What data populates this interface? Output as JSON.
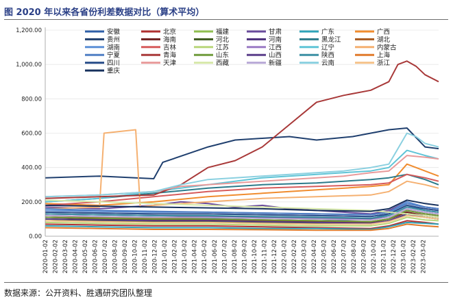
{
  "title": "图 2020 年以来各省份利差数据对比（算术平均）",
  "source": "数据来源：公开资料、胜遇研究团队整理",
  "chart_data": {
    "type": "line",
    "ylim": [
      0,
      1200
    ],
    "y_ticks": [
      "0.00",
      "200.00",
      "400.00",
      "600.00",
      "800.00",
      "1,000.00",
      "1,200.00"
    ],
    "x_ticks": [
      "2020-01-02",
      "2020-02-02",
      "2020-03-02",
      "2020-04-02",
      "2020-05-02",
      "2020-06-02",
      "2020-07-02",
      "2020-08-02",
      "2020-09-02",
      "2020-10-02",
      "2020-11-02",
      "2020-12-02",
      "2021-01-02",
      "2021-02-02",
      "2021-03-02",
      "2021-04-02",
      "2021-05-02",
      "2021-06-02",
      "2021-07-02",
      "2021-08-02",
      "2021-09-02",
      "2021-10-02",
      "2021-11-02",
      "2021-12-02",
      "2022-01-02",
      "2022-02-02",
      "2022-03-02",
      "2022-04-02",
      "2022-05-02",
      "2022-06-02",
      "2022-07-02",
      "2022-08-02",
      "2022-09-02",
      "2022-10-02",
      "2022-11-02",
      "2022-12-02",
      "2023-01-02",
      "2023-02-02",
      "2023-03-02"
    ],
    "x_range": [
      0,
      43.5
    ],
    "series": [
      {
        "name": "安徽",
        "color": "#2e5fa8",
        "x": [
          0,
          6,
          12,
          18,
          24,
          30,
          33,
          36,
          38,
          40,
          42,
          43.5
        ],
        "values": [
          120,
          115,
          110,
          108,
          105,
          100,
          95,
          100,
          130,
          180,
          150,
          140
        ]
      },
      {
        "name": "北京",
        "color": "#b03030",
        "x": [
          0,
          6,
          12,
          18,
          24,
          30,
          36,
          38,
          40,
          42,
          43.5
        ],
        "values": [
          70,
          65,
          60,
          60,
          55,
          50,
          45,
          60,
          90,
          80,
          70
        ]
      },
      {
        "name": "福建",
        "color": "#8fbf4f",
        "x": [
          0,
          6,
          12,
          18,
          24,
          30,
          36,
          38,
          40,
          42,
          43.5
        ],
        "values": [
          90,
          85,
          80,
          80,
          75,
          70,
          70,
          90,
          120,
          110,
          100
        ]
      },
      {
        "name": "甘肃",
        "color": "#6a4c9c",
        "x": [
          0,
          6,
          12,
          15,
          18,
          21,
          24,
          27,
          30,
          33,
          36,
          38,
          40,
          42,
          43.5
        ],
        "values": [
          170,
          160,
          180,
          200,
          190,
          170,
          180,
          160,
          150,
          140,
          130,
          150,
          200,
          170,
          160
        ]
      },
      {
        "name": "广东",
        "color": "#2ea3b8",
        "x": [
          0,
          6,
          12,
          18,
          24,
          30,
          36,
          38,
          40,
          42,
          43.5
        ],
        "values": [
          60,
          55,
          50,
          50,
          45,
          45,
          40,
          55,
          80,
          75,
          70
        ]
      },
      {
        "name": "广西",
        "color": "#f08c2e",
        "x": [
          0,
          6,
          12,
          18,
          24,
          30,
          36,
          38,
          40,
          42,
          43.5
        ],
        "values": [
          190,
          180,
          200,
          230,
          250,
          270,
          290,
          300,
          420,
          380,
          350
        ]
      },
      {
        "name": "贵州",
        "color": "#1f3f6e",
        "x": [
          0,
          6,
          12,
          13,
          18,
          21,
          24,
          27,
          30,
          32,
          34,
          36,
          38,
          40,
          42,
          43.5
        ],
        "values": [
          340,
          350,
          335,
          430,
          520,
          560,
          570,
          580,
          560,
          570,
          580,
          600,
          620,
          630,
          520,
          510
        ]
      },
      {
        "name": "海南",
        "color": "#6e1f1f",
        "x": [
          0,
          6,
          12,
          18,
          24,
          30,
          36,
          38,
          40,
          42,
          43.5
        ],
        "values": [
          110,
          100,
          95,
          95,
          90,
          85,
          80,
          100,
          140,
          120,
          110
        ]
      },
      {
        "name": "河北",
        "color": "#3d5a1e",
        "x": [
          0,
          6,
          12,
          18,
          24,
          30,
          36,
          38,
          40,
          42,
          43.5
        ],
        "values": [
          100,
          90,
          85,
          85,
          80,
          75,
          70,
          90,
          130,
          110,
          100
        ]
      },
      {
        "name": "河南",
        "color": "#4a2e7a",
        "x": [
          0,
          6,
          12,
          18,
          24,
          30,
          36,
          38,
          40,
          42,
          43.5
        ],
        "values": [
          130,
          125,
          120,
          115,
          110,
          105,
          100,
          110,
          160,
          140,
          130
        ]
      },
      {
        "name": "黑龙江",
        "color": "#2b7a8a",
        "x": [
          0,
          6,
          12,
          18,
          24,
          30,
          36,
          38,
          40,
          42,
          43.5
        ],
        "values": [
          200,
          220,
          250,
          280,
          300,
          310,
          330,
          340,
          360,
          330,
          300
        ]
      },
      {
        "name": "湖北",
        "color": "#a85a1e",
        "x": [
          0,
          6,
          12,
          18,
          24,
          30,
          36,
          38,
          40,
          42,
          43.5
        ],
        "values": [
          120,
          110,
          105,
          100,
          95,
          90,
          85,
          100,
          150,
          130,
          120
        ]
      },
      {
        "name": "湖南",
        "color": "#5b8fd6",
        "x": [
          0,
          6,
          12,
          18,
          24,
          30,
          36,
          38,
          40,
          42,
          43.5
        ],
        "values": [
          150,
          145,
          140,
          140,
          135,
          130,
          125,
          140,
          200,
          170,
          160
        ]
      },
      {
        "name": "吉林",
        "color": "#d65b5b",
        "x": [
          0,
          6,
          12,
          18,
          24,
          30,
          36,
          38,
          40,
          42,
          43.5
        ],
        "values": [
          180,
          200,
          230,
          260,
          280,
          290,
          300,
          310,
          360,
          340,
          320
        ]
      },
      {
        "name": "江苏",
        "color": "#b8d67a",
        "x": [
          0,
          6,
          12,
          18,
          24,
          30,
          36,
          38,
          40,
          42,
          43.5
        ],
        "values": [
          80,
          75,
          70,
          70,
          65,
          60,
          60,
          75,
          110,
          95,
          90
        ]
      },
      {
        "name": "江西",
        "color": "#9a7ac4",
        "x": [
          0,
          6,
          12,
          18,
          24,
          30,
          36,
          38,
          40,
          42,
          43.5
        ],
        "values": [
          140,
          135,
          130,
          130,
          125,
          120,
          115,
          130,
          180,
          160,
          150
        ]
      },
      {
        "name": "辽宁",
        "color": "#5fc4d6",
        "x": [
          0,
          6,
          12,
          18,
          24,
          30,
          36,
          38,
          40,
          42,
          43.5
        ],
        "values": [
          200,
          220,
          260,
          300,
          340,
          360,
          380,
          400,
          500,
          470,
          450
        ]
      },
      {
        "name": "内蒙古",
        "color": "#f5b070",
        "x": [
          0,
          6,
          6.5,
          10,
          10.5,
          12,
          18,
          24,
          30,
          36,
          38,
          40,
          42,
          43.5
        ],
        "values": [
          160,
          170,
          600,
          620,
          170,
          180,
          200,
          220,
          230,
          240,
          260,
          320,
          300,
          280
        ]
      },
      {
        "name": "宁夏",
        "color": "#4f7ec4",
        "x": [
          0,
          6,
          12,
          18,
          24,
          30,
          36,
          38,
          40,
          42,
          43.5
        ],
        "values": [
          160,
          150,
          145,
          140,
          135,
          130,
          125,
          140,
          190,
          170,
          160
        ]
      },
      {
        "name": "青海",
        "color": "#a83838",
        "x": [
          0,
          6,
          12,
          15,
          18,
          21,
          24,
          27,
          30,
          33,
          36,
          38,
          39,
          40,
          41,
          42,
          43.5
        ],
        "values": [
          220,
          230,
          240,
          300,
          400,
          440,
          520,
          650,
          780,
          820,
          850,
          900,
          1000,
          1020,
          990,
          940,
          900
        ]
      },
      {
        "name": "山东",
        "color": "#6e9a3a",
        "x": [
          0,
          6,
          12,
          18,
          24,
          30,
          36,
          38,
          40,
          42,
          43.5
        ],
        "values": [
          110,
          105,
          100,
          100,
          95,
          90,
          85,
          100,
          150,
          130,
          120
        ]
      },
      {
        "name": "山西",
        "color": "#5a3e8a",
        "x": [
          0,
          6,
          12,
          18,
          24,
          30,
          36,
          38,
          40,
          42,
          43.5
        ],
        "values": [
          100,
          95,
          90,
          90,
          85,
          80,
          75,
          90,
          130,
          110,
          100
        ]
      },
      {
        "name": "陕西",
        "color": "#3a8fa3",
        "x": [
          0,
          6,
          12,
          18,
          24,
          30,
          36,
          38,
          40,
          42,
          43.5
        ],
        "values": [
          130,
          125,
          120,
          120,
          115,
          110,
          105,
          120,
          170,
          150,
          140
        ]
      },
      {
        "name": "上海",
        "color": "#e07a2a",
        "x": [
          0,
          6,
          12,
          18,
          24,
          30,
          36,
          38,
          40,
          42,
          43.5
        ],
        "values": [
          50,
          45,
          40,
          40,
          38,
          35,
          35,
          45,
          70,
          60,
          55
        ]
      },
      {
        "name": "四川",
        "color": "#2a4f8a",
        "x": [
          0,
          6,
          12,
          18,
          24,
          30,
          36,
          38,
          40,
          42,
          43.5
        ],
        "values": [
          140,
          135,
          130,
          130,
          125,
          120,
          115,
          130,
          180,
          160,
          150
        ]
      },
      {
        "name": "天津",
        "color": "#e89a9a",
        "x": [
          0,
          6,
          12,
          15,
          18,
          21,
          24,
          27,
          30,
          33,
          36,
          38,
          40,
          42,
          43.5
        ],
        "values": [
          230,
          240,
          260,
          290,
          300,
          310,
          320,
          330,
          340,
          350,
          370,
          380,
          470,
          460,
          450
        ]
      },
      {
        "name": "西藏",
        "color": "#d6e8a8",
        "x": [
          0,
          6,
          12,
          18,
          24,
          30,
          36,
          38,
          40,
          42,
          43.5
        ],
        "values": [
          210,
          200,
          190,
          180,
          170,
          160,
          150,
          140,
          130,
          120,
          110
        ]
      },
      {
        "name": "新疆",
        "color": "#b8a8d6",
        "x": [
          0,
          6,
          12,
          18,
          24,
          30,
          36,
          38,
          40,
          42,
          43.5
        ],
        "values": [
          120,
          115,
          110,
          110,
          105,
          100,
          95,
          110,
          160,
          140,
          130
        ]
      },
      {
        "name": "云南",
        "color": "#8ad0e0",
        "x": [
          0,
          6,
          12,
          15,
          18,
          21,
          24,
          27,
          30,
          33,
          36,
          38,
          40,
          41,
          42,
          43.5
        ],
        "values": [
          230,
          240,
          260,
          300,
          330,
          340,
          350,
          360,
          370,
          380,
          400,
          420,
          600,
          580,
          540,
          520
        ]
      },
      {
        "name": "浙江",
        "color": "#f5c28a",
        "x": [
          0,
          6,
          12,
          18,
          24,
          30,
          36,
          38,
          40,
          42,
          43.5
        ],
        "values": [
          90,
          85,
          80,
          80,
          75,
          70,
          70,
          85,
          120,
          110,
          100
        ]
      },
      {
        "name": "重庆",
        "color": "#16305c",
        "x": [
          0,
          6,
          12,
          18,
          24,
          30,
          36,
          38,
          40,
          42,
          43.5
        ],
        "values": [
          180,
          175,
          170,
          165,
          160,
          150,
          145,
          160,
          210,
          190,
          180
        ]
      }
    ]
  }
}
